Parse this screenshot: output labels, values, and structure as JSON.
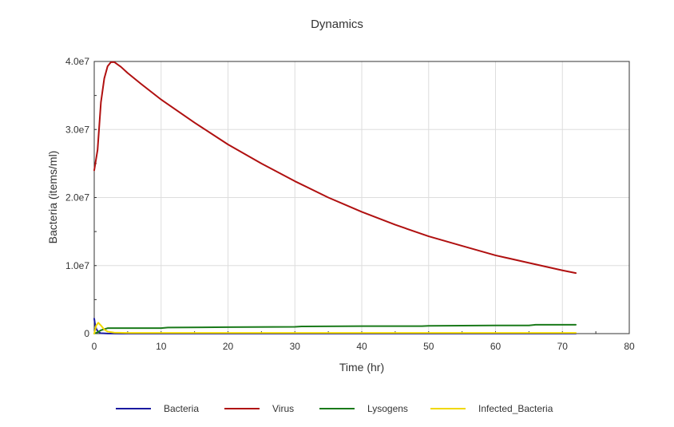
{
  "chart_data": {
    "type": "line",
    "title": "Dynamics",
    "xlabel": "Time (hr)",
    "ylabel": "Bacteria (items/ml)",
    "xlim": [
      0,
      80
    ],
    "ylim": [
      0,
      40000000
    ],
    "xticks": [
      "0",
      "10",
      "20",
      "30",
      "40",
      "50",
      "60",
      "70",
      "80"
    ],
    "yticks": [
      "0",
      "1.0e7",
      "2.0e7",
      "3.0e7",
      "4.0e7"
    ],
    "grid": true,
    "legend_position": "bottom",
    "series": [
      {
        "name": "Bacteria",
        "color": "#1a1aa0",
        "x": [
          0,
          0.1,
          0.3,
          0.6,
          1,
          2,
          4,
          10,
          30,
          72
        ],
        "y": [
          2200000,
          1500000,
          700000,
          250000,
          60000,
          10000,
          2000,
          0,
          0,
          0
        ]
      },
      {
        "name": "Virus",
        "color": "#b01010",
        "x": [
          0,
          0.5,
          1,
          1.5,
          2,
          2.5,
          3,
          4,
          5,
          7,
          10,
          15,
          20,
          25,
          30,
          35,
          40,
          45,
          50,
          55,
          60,
          65,
          70,
          72
        ],
        "y": [
          24000000,
          27000000,
          34000000,
          37500000,
          39300000,
          39900000,
          39900000,
          39200000,
          38300000,
          36700000,
          34400000,
          31000000,
          27800000,
          25000000,
          22400000,
          20000000,
          17900000,
          16000000,
          14300000,
          12900000,
          11500000,
          10400000,
          9300000,
          8900000
        ]
      },
      {
        "name": "Lysogens",
        "color": "#1a7a1a",
        "x": [
          0,
          0.5,
          1,
          2,
          5,
          10,
          11,
          20,
          30,
          31,
          40,
          49,
          50,
          60,
          65,
          66,
          72
        ],
        "y": [
          0,
          200000,
          500000,
          800000,
          800000,
          800000,
          900000,
          950000,
          1000000,
          1050000,
          1100000,
          1100000,
          1150000,
          1200000,
          1200000,
          1300000,
          1300000
        ]
      },
      {
        "name": "Infected_Bacteria",
        "color": "#f0d800",
        "x": [
          0,
          0.3,
          0.6,
          1,
          1.5,
          2,
          3,
          5,
          10,
          30,
          72
        ],
        "y": [
          0,
          1200000,
          1600000,
          1200000,
          600000,
          300000,
          150000,
          100000,
          100000,
          100000,
          100000
        ]
      }
    ]
  }
}
